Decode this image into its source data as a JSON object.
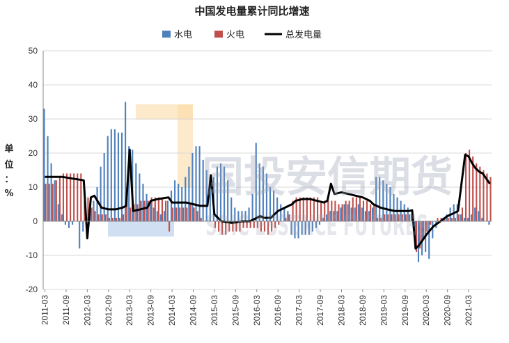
{
  "chart_data": {
    "type": "bar",
    "title": "中国发电量累计同比增速",
    "ylabel_chars": [
      "单",
      "位",
      "：",
      "%"
    ],
    "ylim": [
      -20,
      50
    ],
    "yticks": [
      -20,
      -10,
      0,
      10,
      20,
      30,
      40,
      50
    ],
    "grid": true,
    "legend_position": "top-center",
    "watermark": "国投安信期货",
    "watermark_sub": "SDIC ESSENCE FUTURES",
    "x_labels": [
      "2011-03",
      "2011-09",
      "2012-03",
      "2012-09",
      "2013-03",
      "2013-09",
      "2014-03",
      "2014-09",
      "2015-03",
      "2015-09",
      "2016-03",
      "2016-09",
      "2017-03",
      "2017-09",
      "2018-03",
      "2018-09",
      "2019-03",
      "2019-09",
      "2020-03",
      "2020-09",
      "2021-03"
    ],
    "series": [
      {
        "name": "水电",
        "kind": "bar",
        "color": "#4f81bd",
        "points": [
          [
            0,
            33
          ],
          [
            1,
            25
          ],
          [
            2,
            17
          ],
          [
            3,
            12
          ],
          [
            4,
            5
          ],
          [
            5,
            2
          ],
          [
            6,
            -1
          ],
          [
            7,
            -2
          ],
          [
            8,
            -1
          ],
          [
            9,
            0
          ],
          [
            10,
            -8
          ],
          [
            11,
            -3
          ],
          [
            12,
            -1
          ],
          [
            13,
            3
          ],
          [
            14,
            6
          ],
          [
            15,
            10
          ],
          [
            16,
            16
          ],
          [
            17,
            20
          ],
          [
            18,
            25
          ],
          [
            19,
            27
          ],
          [
            20,
            27
          ],
          [
            21,
            26
          ],
          [
            22,
            26
          ],
          [
            23,
            35
          ],
          [
            24,
            22
          ],
          [
            25,
            21
          ],
          [
            26,
            17
          ],
          [
            27,
            14
          ],
          [
            28,
            11
          ],
          [
            29,
            8
          ],
          [
            30,
            6
          ],
          [
            31,
            4
          ],
          [
            32,
            3
          ],
          [
            33,
            2
          ],
          [
            34,
            3
          ],
          [
            35,
            6
          ],
          [
            36,
            9
          ],
          [
            37,
            12
          ],
          [
            38,
            11
          ],
          [
            39,
            10
          ],
          [
            40,
            13
          ],
          [
            41,
            16
          ],
          [
            42,
            20
          ],
          [
            43,
            22
          ],
          [
            44,
            22
          ],
          [
            45,
            18
          ],
          [
            46,
            15
          ],
          [
            47,
            13
          ],
          [
            48,
            13
          ],
          [
            49,
            16
          ],
          [
            50,
            17
          ],
          [
            51,
            16
          ],
          [
            52,
            12
          ],
          [
            53,
            7
          ],
          [
            54,
            4
          ],
          [
            55,
            3
          ],
          [
            56,
            3
          ],
          [
            57,
            3
          ],
          [
            58,
            4
          ],
          [
            59,
            8
          ],
          [
            60,
            23
          ],
          [
            61,
            17
          ],
          [
            62,
            16
          ],
          [
            63,
            14
          ],
          [
            64,
            10
          ],
          [
            65,
            9
          ],
          [
            66,
            7
          ],
          [
            67,
            5
          ],
          [
            68,
            4
          ],
          [
            69,
            3
          ],
          [
            70,
            -4
          ],
          [
            71,
            -5
          ],
          [
            72,
            -5
          ],
          [
            73,
            -4
          ],
          [
            74,
            -4
          ],
          [
            75,
            -4
          ],
          [
            76,
            -3
          ],
          [
            77,
            -2
          ],
          [
            78,
            -1
          ],
          [
            79,
            1
          ],
          [
            80,
            2
          ],
          [
            81,
            3
          ],
          [
            82,
            3
          ],
          [
            83,
            3
          ],
          [
            84,
            4
          ],
          [
            85,
            5
          ],
          [
            86,
            5
          ],
          [
            87,
            4
          ],
          [
            88,
            4
          ],
          [
            89,
            5
          ],
          [
            90,
            4
          ],
          [
            91,
            3
          ],
          [
            92,
            3
          ],
          [
            93,
            4
          ],
          [
            94,
            13
          ],
          [
            95,
            13
          ],
          [
            96,
            12
          ],
          [
            97,
            11
          ],
          [
            98,
            10
          ],
          [
            99,
            8
          ],
          [
            100,
            7
          ],
          [
            101,
            6
          ],
          [
            102,
            5
          ],
          [
            103,
            4
          ],
          [
            104,
            2
          ],
          [
            105,
            -8
          ],
          [
            106,
            -12
          ],
          [
            107,
            -10
          ],
          [
            108,
            -9
          ],
          [
            109,
            -11
          ],
          [
            110,
            -5
          ],
          [
            111,
            -2
          ],
          [
            112,
            0
          ],
          [
            113,
            1
          ],
          [
            114,
            2
          ],
          [
            115,
            4
          ],
          [
            116,
            5
          ],
          [
            117,
            5
          ],
          [
            118,
            2
          ],
          [
            119,
            1
          ],
          [
            120,
            1
          ],
          [
            121,
            2
          ],
          [
            122,
            4
          ],
          [
            123,
            3
          ],
          [
            124,
            1
          ],
          [
            125,
            0
          ],
          [
            126,
            -1
          ]
        ]
      },
      {
        "name": "火电",
        "kind": "bar",
        "color": "#c0504d",
        "points": [
          [
            0,
            11
          ],
          [
            1,
            11
          ],
          [
            2,
            11
          ],
          [
            3,
            12
          ],
          [
            4,
            13
          ],
          [
            5,
            14
          ],
          [
            6,
            14
          ],
          [
            7,
            14
          ],
          [
            8,
            14
          ],
          [
            9,
            14
          ],
          [
            10,
            14
          ],
          [
            11,
            6
          ],
          [
            12,
            7
          ],
          [
            13,
            4
          ],
          [
            14,
            3
          ],
          [
            15,
            2
          ],
          [
            16,
            2
          ],
          [
            17,
            2
          ],
          [
            18,
            1
          ],
          [
            19,
            1
          ],
          [
            20,
            1
          ],
          [
            21,
            1
          ],
          [
            22,
            2
          ],
          [
            23,
            10
          ],
          [
            24,
            4
          ],
          [
            25,
            5
          ],
          [
            26,
            5
          ],
          [
            27,
            6
          ],
          [
            28,
            6
          ],
          [
            29,
            6
          ],
          [
            30,
            7
          ],
          [
            31,
            7
          ],
          [
            32,
            7
          ],
          [
            33,
            7
          ],
          [
            34,
            6
          ],
          [
            35,
            -3
          ],
          [
            36,
            4
          ],
          [
            37,
            4
          ],
          [
            38,
            4
          ],
          [
            39,
            4
          ],
          [
            40,
            4
          ],
          [
            41,
            5
          ],
          [
            42,
            4
          ],
          [
            43,
            3
          ],
          [
            44,
            1
          ],
          [
            45,
            0
          ],
          [
            46,
            0
          ],
          [
            47,
            0
          ],
          [
            48,
            -2
          ],
          [
            49,
            -3
          ],
          [
            50,
            -4
          ],
          [
            51,
            -4
          ],
          [
            52,
            -3
          ],
          [
            53,
            -3
          ],
          [
            54,
            -3
          ],
          [
            55,
            -3
          ],
          [
            56,
            -2
          ],
          [
            57,
            -2
          ],
          [
            58,
            -2
          ],
          [
            59,
            -2
          ],
          [
            60,
            -2
          ],
          [
            61,
            -3
          ],
          [
            62,
            -3
          ],
          [
            63,
            -4
          ],
          [
            64,
            -3
          ],
          [
            65,
            -2
          ],
          [
            66,
            -1
          ],
          [
            67,
            0
          ],
          [
            68,
            1
          ],
          [
            69,
            2
          ],
          [
            70,
            6
          ],
          [
            71,
            7
          ],
          [
            72,
            7
          ],
          [
            73,
            7
          ],
          [
            74,
            7
          ],
          [
            75,
            7
          ],
          [
            76,
            7
          ],
          [
            77,
            7
          ],
          [
            78,
            6
          ],
          [
            79,
            6
          ],
          [
            80,
            6
          ],
          [
            81,
            6
          ],
          [
            82,
            6
          ],
          [
            83,
            5
          ],
          [
            84,
            5
          ],
          [
            85,
            6
          ],
          [
            86,
            6
          ],
          [
            87,
            7
          ],
          [
            88,
            7
          ],
          [
            89,
            7
          ],
          [
            90,
            6
          ],
          [
            91,
            6
          ],
          [
            92,
            5
          ],
          [
            93,
            5
          ],
          [
            94,
            1
          ],
          [
            95,
            1
          ],
          [
            96,
            2
          ],
          [
            97,
            2
          ],
          [
            98,
            2
          ],
          [
            99,
            2
          ],
          [
            100,
            2
          ],
          [
            101,
            2
          ],
          [
            102,
            2
          ],
          [
            103,
            2
          ],
          [
            104,
            2
          ],
          [
            105,
            -9
          ],
          [
            106,
            -8
          ],
          [
            107,
            -5
          ],
          [
            108,
            -3
          ],
          [
            109,
            -1
          ],
          [
            110,
            0
          ],
          [
            111,
            1
          ],
          [
            112,
            1
          ],
          [
            113,
            1
          ],
          [
            114,
            1
          ],
          [
            115,
            1
          ],
          [
            116,
            1
          ],
          [
            117,
            2
          ],
          [
            118,
            4
          ],
          [
            119,
            20
          ],
          [
            120,
            21
          ],
          [
            121,
            19
          ],
          [
            122,
            17
          ],
          [
            123,
            16
          ],
          [
            124,
            15
          ],
          [
            125,
            14
          ],
          [
            126,
            13
          ]
        ]
      },
      {
        "name": "总发电量",
        "kind": "line",
        "color": "#000000",
        "points": [
          [
            0,
            13
          ],
          [
            2,
            13
          ],
          [
            5,
            13
          ],
          [
            8,
            12.5
          ],
          [
            11,
            12
          ],
          [
            12,
            -5
          ],
          [
            13,
            7
          ],
          [
            14,
            7.5
          ],
          [
            16,
            4
          ],
          [
            18,
            3.5
          ],
          [
            20,
            3.5
          ],
          [
            22,
            4
          ],
          [
            23,
            4.5
          ],
          [
            24,
            21
          ],
          [
            25,
            3
          ],
          [
            27,
            3.5
          ],
          [
            29,
            4
          ],
          [
            30,
            6
          ],
          [
            32,
            6.5
          ],
          [
            35,
            7
          ],
          [
            36,
            5.5
          ],
          [
            38,
            5.5
          ],
          [
            40,
            5.5
          ],
          [
            42,
            5
          ],
          [
            44,
            4.5
          ],
          [
            46,
            4.5
          ],
          [
            47,
            13.5
          ],
          [
            48,
            2
          ],
          [
            50,
            0
          ],
          [
            53,
            -0.5
          ],
          [
            56,
            0
          ],
          [
            58,
            0
          ],
          [
            59,
            0.5
          ],
          [
            60,
            1
          ],
          [
            61,
            1.5
          ],
          [
            62,
            1
          ],
          [
            64,
            1
          ],
          [
            65,
            2
          ],
          [
            66,
            3
          ],
          [
            68,
            4
          ],
          [
            70,
            5
          ],
          [
            71,
            6
          ],
          [
            73,
            6.5
          ],
          [
            75,
            6.5
          ],
          [
            77,
            6
          ],
          [
            79,
            5.5
          ],
          [
            80,
            6
          ],
          [
            81,
            11
          ],
          [
            82,
            8
          ],
          [
            84,
            8.5
          ],
          [
            86,
            8
          ],
          [
            88,
            7.5
          ],
          [
            90,
            7
          ],
          [
            92,
            6
          ],
          [
            93,
            5
          ],
          [
            95,
            4
          ],
          [
            97,
            3.5
          ],
          [
            99,
            3
          ],
          [
            101,
            3
          ],
          [
            103,
            3
          ],
          [
            104,
            3.2
          ],
          [
            105,
            -8
          ],
          [
            106,
            -7
          ],
          [
            108,
            -4
          ],
          [
            110,
            -1.5
          ],
          [
            112,
            0
          ],
          [
            114,
            1.5
          ],
          [
            116,
            2.5
          ],
          [
            117,
            3
          ],
          [
            119,
            19.5
          ],
          [
            120,
            19
          ],
          [
            121,
            17
          ],
          [
            122,
            15.5
          ],
          [
            123,
            14.5
          ],
          [
            124,
            14
          ],
          [
            126,
            11
          ]
        ]
      }
    ]
  }
}
